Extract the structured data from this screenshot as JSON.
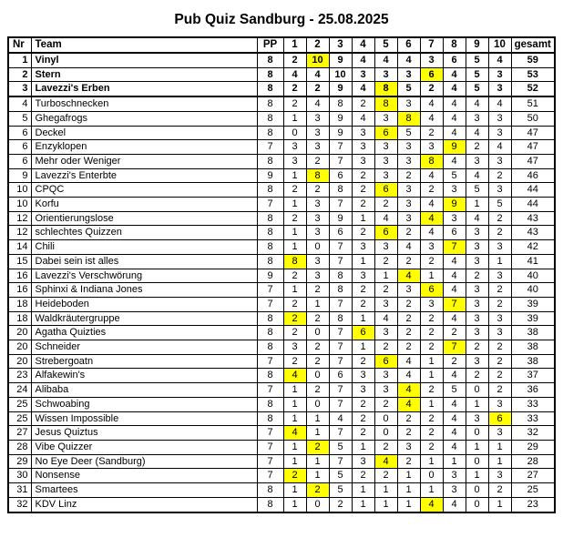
{
  "title": "Pub Quiz Sandburg - 25.08.2025",
  "colors": {
    "highlight": "#FFFF00",
    "border": "#000000",
    "background": "#FFFFFF"
  },
  "table": {
    "headers": [
      "Nr",
      "Team",
      "PP",
      "1",
      "2",
      "3",
      "4",
      "5",
      "6",
      "7",
      "8",
      "9",
      "10",
      "gesamt"
    ],
    "rows": [
      {
        "nr": "1",
        "team": "Vinyl",
        "bold": true,
        "pp": 8,
        "scores": [
          2,
          10,
          9,
          4,
          4,
          4,
          3,
          6,
          5,
          4
        ],
        "highlight_index": 1,
        "gesamt": 59
      },
      {
        "nr": "2",
        "team": "Stern",
        "bold": true,
        "pp": 8,
        "scores": [
          4,
          4,
          10,
          3,
          3,
          3,
          6,
          4,
          5,
          3
        ],
        "highlight_index": 6,
        "gesamt": 53
      },
      {
        "nr": "3",
        "team": "Lavezzi's Erben",
        "bold": true,
        "pp": 8,
        "scores": [
          2,
          2,
          9,
          4,
          8,
          5,
          2,
          4,
          5,
          3
        ],
        "highlight_index": 4,
        "gesamt": 52
      },
      {
        "nr": "4",
        "team": "Turboschnecken",
        "bold": false,
        "pp": 8,
        "scores": [
          2,
          4,
          8,
          2,
          8,
          3,
          4,
          4,
          4,
          4
        ],
        "highlight_index": 4,
        "gesamt": 51
      },
      {
        "nr": "5",
        "team": "Ghegafrogs",
        "bold": false,
        "pp": 8,
        "scores": [
          1,
          3,
          9,
          4,
          3,
          8,
          4,
          4,
          3,
          3
        ],
        "highlight_index": 5,
        "gesamt": 50
      },
      {
        "nr": "6",
        "team": "Deckel",
        "bold": false,
        "pp": 8,
        "scores": [
          0,
          3,
          9,
          3,
          6,
          5,
          2,
          4,
          4,
          3
        ],
        "highlight_index": 4,
        "gesamt": 47
      },
      {
        "nr": "6",
        "team": "Enzyklopen",
        "bold": false,
        "pp": 7,
        "scores": [
          3,
          3,
          7,
          3,
          3,
          3,
          3,
          9,
          2,
          4
        ],
        "highlight_index": 7,
        "gesamt": 47
      },
      {
        "nr": "6",
        "team": "Mehr oder Weniger",
        "bold": false,
        "pp": 8,
        "scores": [
          3,
          2,
          7,
          3,
          3,
          3,
          8,
          4,
          3,
          3
        ],
        "highlight_index": 6,
        "gesamt": 47
      },
      {
        "nr": "9",
        "team": "Lavezzi's Enterbte",
        "bold": false,
        "pp": 9,
        "scores": [
          1,
          8,
          6,
          2,
          3,
          2,
          4,
          5,
          4,
          2
        ],
        "highlight_index": 1,
        "gesamt": 46
      },
      {
        "nr": "10",
        "team": "CPQC",
        "bold": false,
        "pp": 8,
        "scores": [
          2,
          2,
          8,
          2,
          6,
          3,
          2,
          3,
          5,
          3
        ],
        "highlight_index": 4,
        "gesamt": 44
      },
      {
        "nr": "10",
        "team": "Korfu",
        "bold": false,
        "pp": 7,
        "scores": [
          1,
          3,
          7,
          2,
          2,
          3,
          4,
          9,
          1,
          5
        ],
        "highlight_index": 7,
        "gesamt": 44
      },
      {
        "nr": "12",
        "team": "Orientierungslose",
        "bold": false,
        "pp": 8,
        "scores": [
          2,
          3,
          9,
          1,
          4,
          3,
          4,
          3,
          4,
          2
        ],
        "highlight_index": 6,
        "gesamt": 43
      },
      {
        "nr": "12",
        "team": "schlechtes Quizzen",
        "bold": false,
        "pp": 8,
        "scores": [
          1,
          3,
          6,
          2,
          6,
          2,
          4,
          6,
          3,
          2
        ],
        "highlight_index": 4,
        "gesamt": 43
      },
      {
        "nr": "14",
        "team": "Chili",
        "bold": false,
        "pp": 8,
        "scores": [
          1,
          0,
          7,
          3,
          3,
          4,
          3,
          7,
          3,
          3
        ],
        "highlight_index": 7,
        "gesamt": 42
      },
      {
        "nr": "15",
        "team": "Dabei sein ist alles",
        "bold": false,
        "pp": 8,
        "scores": [
          8,
          3,
          7,
          1,
          2,
          2,
          2,
          4,
          3,
          1
        ],
        "highlight_index": 0,
        "gesamt": 41
      },
      {
        "nr": "16",
        "team": "Lavezzi's Verschwörung",
        "bold": false,
        "pp": 9,
        "scores": [
          2,
          3,
          8,
          3,
          1,
          4,
          1,
          4,
          2,
          3
        ],
        "highlight_index": 5,
        "gesamt": 40
      },
      {
        "nr": "16",
        "team": "Sphinxi & Indiana Jones",
        "bold": false,
        "pp": 7,
        "scores": [
          1,
          2,
          8,
          2,
          2,
          3,
          6,
          4,
          3,
          2
        ],
        "highlight_index": 6,
        "gesamt": 40
      },
      {
        "nr": "18",
        "team": "Heideboden",
        "bold": false,
        "pp": 7,
        "scores": [
          2,
          1,
          7,
          2,
          3,
          2,
          3,
          7,
          3,
          2
        ],
        "highlight_index": 7,
        "gesamt": 39
      },
      {
        "nr": "18",
        "team": "Waldkräutergruppe",
        "bold": false,
        "pp": 8,
        "scores": [
          2,
          2,
          8,
          1,
          4,
          2,
          2,
          4,
          3,
          3
        ],
        "highlight_index": 0,
        "gesamt": 39
      },
      {
        "nr": "20",
        "team": "Agatha Quizties",
        "bold": false,
        "pp": 8,
        "scores": [
          2,
          0,
          7,
          6,
          3,
          2,
          2,
          2,
          3,
          3
        ],
        "highlight_index": 3,
        "gesamt": 38
      },
      {
        "nr": "20",
        "team": "Schneider",
        "bold": false,
        "pp": 8,
        "scores": [
          3,
          2,
          7,
          1,
          2,
          2,
          2,
          7,
          2,
          2
        ],
        "highlight_index": 7,
        "gesamt": 38
      },
      {
        "nr": "20",
        "team": "Strebergoatn",
        "bold": false,
        "pp": 7,
        "scores": [
          2,
          2,
          7,
          2,
          6,
          4,
          1,
          2,
          3,
          2
        ],
        "highlight_index": 4,
        "gesamt": 38
      },
      {
        "nr": "23",
        "team": "Alfakewin's",
        "bold": false,
        "pp": 8,
        "scores": [
          4,
          0,
          6,
          3,
          3,
          4,
          1,
          4,
          2,
          2
        ],
        "highlight_index": 0,
        "gesamt": 37
      },
      {
        "nr": "24",
        "team": "Alibaba",
        "bold": false,
        "pp": 7,
        "scores": [
          1,
          2,
          7,
          3,
          3,
          4,
          2,
          5,
          0,
          2
        ],
        "highlight_index": 5,
        "gesamt": 36
      },
      {
        "nr": "25",
        "team": "Schwoabing",
        "bold": false,
        "pp": 8,
        "scores": [
          1,
          0,
          7,
          2,
          2,
          4,
          1,
          4,
          1,
          3
        ],
        "highlight_index": 5,
        "gesamt": 33
      },
      {
        "nr": "25",
        "team": "Wissen Impossible",
        "bold": false,
        "pp": 8,
        "scores": [
          1,
          1,
          4,
          2,
          0,
          2,
          2,
          4,
          3,
          6
        ],
        "highlight_index": 9,
        "gesamt": 33
      },
      {
        "nr": "27",
        "team": "Jesus Quiztus",
        "bold": false,
        "pp": 7,
        "scores": [
          4,
          1,
          7,
          2,
          0,
          2,
          2,
          4,
          0,
          3
        ],
        "highlight_index": 0,
        "gesamt": 32
      },
      {
        "nr": "28",
        "team": "Vibe Quizzer",
        "bold": false,
        "pp": 7,
        "scores": [
          1,
          2,
          5,
          1,
          2,
          3,
          2,
          4,
          1,
          1
        ],
        "highlight_index": 1,
        "gesamt": 29
      },
      {
        "nr": "29",
        "team": "No Eye Deer (Sandburg)",
        "bold": false,
        "pp": 7,
        "scores": [
          1,
          1,
          7,
          3,
          4,
          2,
          1,
          1,
          0,
          1
        ],
        "highlight_index": 4,
        "gesamt": 28
      },
      {
        "nr": "30",
        "team": "Nonsense",
        "bold": false,
        "pp": 7,
        "scores": [
          2,
          1,
          5,
          2,
          2,
          1,
          0,
          3,
          1,
          3
        ],
        "highlight_index": 0,
        "gesamt": 27
      },
      {
        "nr": "31",
        "team": "Smartees",
        "bold": false,
        "pp": 8,
        "scores": [
          1,
          2,
          5,
          1,
          1,
          1,
          1,
          3,
          0,
          2
        ],
        "highlight_index": 1,
        "gesamt": 25
      },
      {
        "nr": "32",
        "team": "KDV Linz",
        "bold": false,
        "pp": 8,
        "scores": [
          1,
          0,
          2,
          1,
          1,
          1,
          4,
          4,
          0,
          1
        ],
        "highlight_index": 6,
        "gesamt": 23
      }
    ]
  }
}
